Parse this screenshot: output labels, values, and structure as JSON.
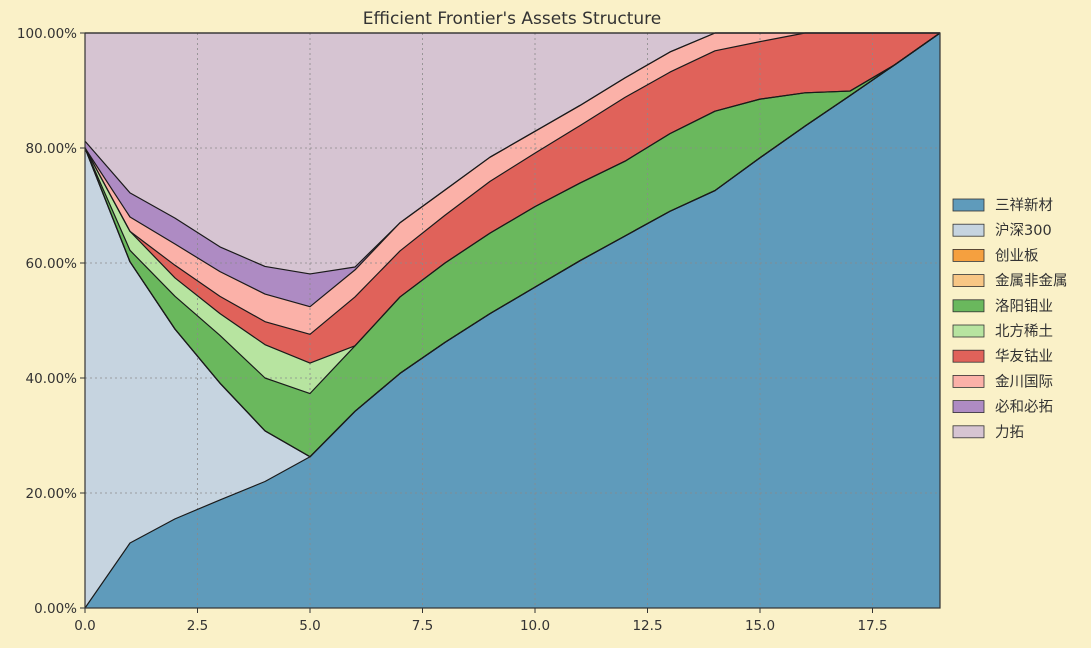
{
  "chart_data": {
    "type": "area",
    "stacked": true,
    "title": "Efficient Frontier's Assets Structure",
    "xlabel": "",
    "ylabel": "",
    "x": [
      0,
      1,
      2,
      3,
      4,
      5,
      6,
      7,
      8,
      9,
      10,
      11,
      12,
      13,
      14,
      15,
      16,
      17,
      18,
      19
    ],
    "xlim": [
      0,
      19
    ],
    "ylim": [
      0,
      1
    ],
    "xticks": [
      0.0,
      2.5,
      5.0,
      7.5,
      10.0,
      12.5,
      15.0,
      17.5
    ],
    "xtick_labels": [
      "0.0",
      "2.5",
      "5.0",
      "7.5",
      "10.0",
      "12.5",
      "15.0",
      "17.5"
    ],
    "yticks": [
      0,
      0.2,
      0.4,
      0.6,
      0.8,
      1.0
    ],
    "ytick_labels": [
      "0.00%",
      "20.00%",
      "40.00%",
      "60.00%",
      "80.00%",
      "100.00%"
    ],
    "grid": true,
    "legend_position": "right",
    "background_color": "#faf1c8",
    "plot_background": "#ffffff",
    "series": [
      {
        "name": "三祥新材",
        "color": "#5f9bbb",
        "values": [
          0,
          0.113,
          0.155,
          0.188,
          0.22,
          0.263,
          0.342,
          0.408,
          0.462,
          0.512,
          0.558,
          0.604,
          0.647,
          0.69,
          0.726,
          0.783,
          0.838,
          0.891,
          0.945,
          1.0
        ]
      },
      {
        "name": "沪深300",
        "color": "#c6d4e0",
        "values": [
          0.8,
          0.489,
          0.33,
          0.203,
          0.088,
          0,
          0,
          0,
          0,
          0,
          0,
          0,
          0,
          0,
          0,
          0,
          0,
          0,
          0,
          0
        ]
      },
      {
        "name": "创业板",
        "color": "#f5a03f",
        "values": [
          0,
          0,
          0,
          0,
          0,
          0,
          0,
          0,
          0,
          0,
          0,
          0,
          0,
          0,
          0,
          0,
          0,
          0,
          0,
          0
        ]
      },
      {
        "name": "金属非金属",
        "color": "#f8c685",
        "values": [
          0,
          0,
          0,
          0,
          0,
          0,
          0,
          0,
          0,
          0,
          0,
          0,
          0,
          0,
          0,
          0,
          0,
          0,
          0,
          0
        ]
      },
      {
        "name": "洛阳钼业",
        "color": "#6ab85d",
        "values": [
          0,
          0.02,
          0.057,
          0.083,
          0.092,
          0.11,
          0.114,
          0.133,
          0.138,
          0.14,
          0.14,
          0.135,
          0.13,
          0.135,
          0.138,
          0.102,
          0.058,
          0.008,
          0,
          0
        ]
      },
      {
        "name": "北方稀土",
        "color": "#b7e4a0",
        "values": [
          0,
          0.033,
          0.032,
          0.038,
          0.058,
          0.053,
          0,
          0,
          0,
          0,
          0,
          0,
          0,
          0,
          0,
          0,
          0,
          0,
          0,
          0
        ]
      },
      {
        "name": "华友钴业",
        "color": "#e0625a",
        "values": [
          0,
          0,
          0.022,
          0.03,
          0.04,
          0.05,
          0.085,
          0.08,
          0.083,
          0.09,
          0.093,
          0.1,
          0.111,
          0.107,
          0.105,
          0.1,
          0.104,
          0.101,
          0.055,
          0
        ]
      },
      {
        "name": "金川国际",
        "color": "#fbb1a8",
        "values": [
          0,
          0.025,
          0.037,
          0.043,
          0.048,
          0.048,
          0.047,
          0.049,
          0.044,
          0.042,
          0.038,
          0.035,
          0.034,
          0.035,
          0.031,
          0.015,
          0,
          0,
          0,
          0
        ]
      },
      {
        "name": "必和必拓",
        "color": "#ae8bc3",
        "values": [
          0.012,
          0.042,
          0.045,
          0.043,
          0.048,
          0.057,
          0.005,
          0,
          0,
          0,
          0,
          0,
          0,
          0,
          0,
          0,
          0,
          0,
          0,
          0
        ]
      },
      {
        "name": "力拓",
        "color": "#d6c4d2",
        "values": [
          0.188,
          0.278,
          0.322,
          0.372,
          0.406,
          0.438,
          0.407,
          0.33,
          0.273,
          0.216,
          0.171,
          0.126,
          0.078,
          0.033,
          0,
          0,
          0,
          0,
          0,
          0
        ]
      }
    ]
  }
}
